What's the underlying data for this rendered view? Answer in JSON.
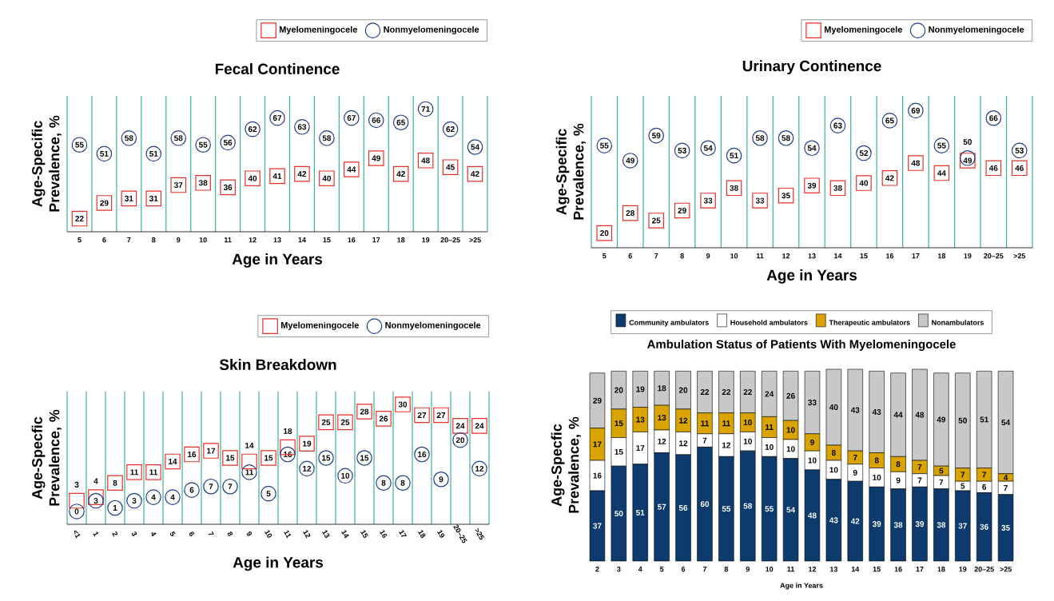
{
  "chart_data": [
    {
      "type": "scatter",
      "title": "Fecal Continence",
      "xlabel": "Age in Years",
      "ylabel": "Age-Specific Prevalence, %",
      "categories": [
        "5",
        "6",
        "7",
        "8",
        "9",
        "10",
        "11",
        "12",
        "13",
        "14",
        "15",
        "16",
        "17",
        "18",
        "19",
        "20–25",
        ">25"
      ],
      "series": [
        {
          "name": "Myelomeningocele",
          "color": "#e8302a",
          "marker": "square",
          "values": [
            22,
            29,
            31,
            31,
            37,
            38,
            36,
            40,
            41,
            42,
            40,
            44,
            49,
            42,
            48,
            45,
            42
          ]
        },
        {
          "name": "Nonmyelomeningocele",
          "color": "#1f3d8a",
          "marker": "circle",
          "values": [
            55,
            51,
            58,
            51,
            58,
            55,
            56,
            62,
            67,
            63,
            58,
            67,
            66,
            65,
            71,
            62,
            54
          ]
        }
      ],
      "data_labels": true,
      "grid": "x",
      "legend": "top right"
    },
    {
      "type": "scatter",
      "title": "Urinary Continence",
      "xlabel": "Age in Years",
      "ylabel": "Age-Specific Prevalence, %",
      "categories": [
        "5",
        "6",
        "7",
        "8",
        "9",
        "10",
        "11",
        "12",
        "13",
        "14",
        "15",
        "16",
        "17",
        "18",
        "19",
        "20–25",
        ">25"
      ],
      "series": [
        {
          "name": "Myelomeningocele",
          "color": "#e8302a",
          "marker": "square",
          "values": [
            20,
            28,
            25,
            29,
            33,
            38,
            33,
            35,
            39,
            38,
            40,
            42,
            48,
            44,
            49,
            46,
            46
          ]
        },
        {
          "name": "Nonmyelomeningocele",
          "color": "#1f3d8a",
          "marker": "circle",
          "values": [
            55,
            49,
            59,
            53,
            54,
            51,
            58,
            58,
            54,
            63,
            52,
            65,
            69,
            55,
            50,
            66,
            53
          ]
        }
      ],
      "data_labels": true,
      "grid": "x",
      "legend": "top right"
    },
    {
      "type": "scatter",
      "title": "Skin Breakdown",
      "xlabel": "Age in Years",
      "ylabel": "Age-Specfic Prevalence, %",
      "categories": [
        "<1",
        "1",
        "2",
        "3",
        "4",
        "5",
        "6",
        "7",
        "8",
        "9",
        "10",
        "11",
        "12",
        "13",
        "14",
        "15",
        "16",
        "17",
        "18",
        "19",
        "20–25",
        ">25"
      ],
      "series": [
        {
          "name": "Myelomeningocele",
          "color": "#e8302a",
          "marker": "square",
          "values": [
            3,
            4,
            8,
            11,
            11,
            14,
            16,
            17,
            15,
            14,
            15,
            18,
            19,
            25,
            25,
            28,
            26,
            30,
            27,
            27,
            24,
            24
          ]
        },
        {
          "name": "Nonmyelomeningocele",
          "color": "#1f3d8a",
          "marker": "circle",
          "values": [
            0,
            3,
            1,
            3,
            4,
            4,
            6,
            7,
            7,
            11,
            5,
            16,
            12,
            15,
            10,
            15,
            8,
            8,
            16,
            9,
            20,
            12
          ]
        }
      ],
      "data_labels": true,
      "grid": "x",
      "legend": "top right"
    },
    {
      "type": "bar",
      "stacked": true,
      "title": "Ambulation Status of Patients With Myelomeningocele",
      "xlabel": "Age in Years",
      "ylabel": "Age-Specfic Prevalence, %",
      "categories": [
        "2",
        "3",
        "4",
        "5",
        "6",
        "7",
        "8",
        "9",
        "10",
        "11",
        "12",
        "13",
        "14",
        "15",
        "16",
        "17",
        "18",
        "19",
        "20–25",
        ">25"
      ],
      "series": [
        {
          "name": "Community ambulators",
          "color": "#0d3b6e",
          "values": [
            37,
            50,
            51,
            57,
            56,
            60,
            55,
            58,
            55,
            54,
            48,
            43,
            42,
            39,
            38,
            39,
            38,
            37,
            36,
            35
          ]
        },
        {
          "name": "Household ambulators",
          "color": "#ffffff",
          "values": [
            16,
            15,
            17,
            12,
            12,
            7,
            12,
            10,
            10,
            10,
            10,
            10,
            9,
            10,
            9,
            7,
            7,
            5,
            6,
            7
          ]
        },
        {
          "name": "Therapeutic ambulators",
          "color": "#d9a400",
          "values": [
            17,
            15,
            13,
            13,
            12,
            11,
            11,
            10,
            11,
            10,
            9,
            8,
            7,
            8,
            8,
            7,
            5,
            7,
            7,
            4
          ]
        },
        {
          "name": "Nonambulators",
          "color": "#c8c8c8",
          "values": [
            29,
            20,
            19,
            18,
            20,
            22,
            22,
            22,
            24,
            26,
            33,
            40,
            43,
            43,
            44,
            48,
            49,
            50,
            51,
            54
          ]
        }
      ],
      "data_labels": true,
      "legend": "top"
    }
  ]
}
